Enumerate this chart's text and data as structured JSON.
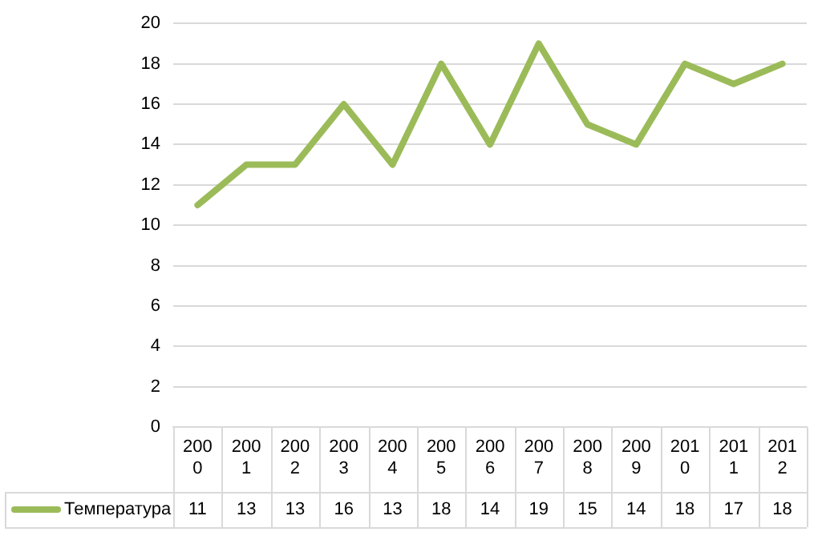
{
  "chart_data": {
    "type": "line",
    "categories": [
      "2000",
      "2001",
      "2002",
      "2003",
      "2004",
      "2005",
      "2006",
      "2007",
      "2008",
      "2009",
      "2010",
      "2011",
      "2012"
    ],
    "series": [
      {
        "name": "Температура",
        "color": "#9bbb59",
        "values": [
          11,
          13,
          13,
          16,
          13,
          18,
          14,
          19,
          15,
          14,
          18,
          17,
          18
        ]
      }
    ],
    "ylim": [
      0,
      20
    ],
    "yticks": [
      0,
      2,
      4,
      6,
      8,
      10,
      12,
      14,
      16,
      18,
      20
    ],
    "grid": "y",
    "legend": "bottom left",
    "marker": "none",
    "line_style": "solid",
    "data_labels": true
  }
}
